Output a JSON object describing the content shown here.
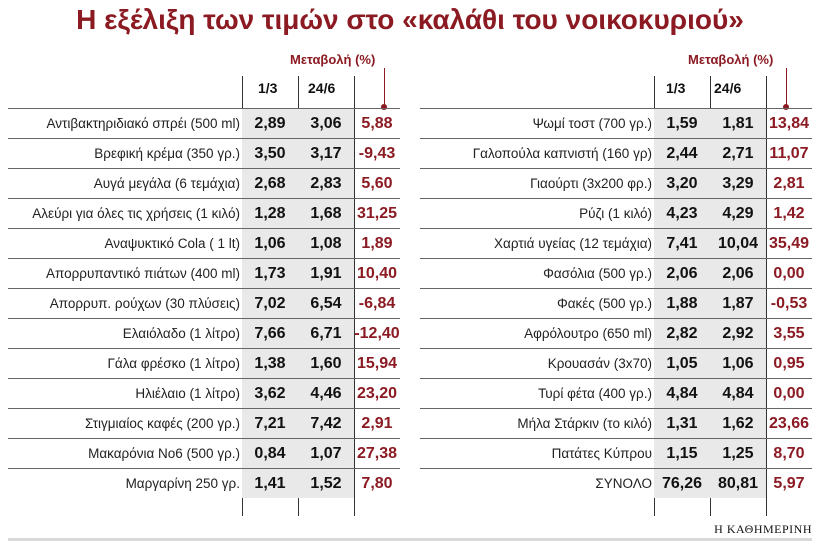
{
  "title": "Η εξέλιξη των τιμών στο «καλάθι του νοικοκυριού»",
  "source": "Η ΚΑΘΗΜΕΡΙΝΗ",
  "colors": {
    "accent": "#8b1a22",
    "shade": "#e9e9e9"
  },
  "headers": {
    "change": "Μεταβολή (%)",
    "date1": "1/3",
    "date2": "24/6"
  },
  "chart_data": {
    "type": "table",
    "title": "Η εξέλιξη των τιμών στο «καλάθι του νοικοκυριού»",
    "columns": [
      "1/3",
      "24/6",
      "Μεταβολή (%)"
    ],
    "left": [
      {
        "item": "Αντιβακτηριδιακό σπρέι (500 ml)",
        "v1": "2,89",
        "v2": "3,06",
        "change": "5,88"
      },
      {
        "item": "Βρεφική κρέμα (350 γρ.)",
        "v1": "3,50",
        "v2": "3,17",
        "change": "-9,43"
      },
      {
        "item": "Αυγά μεγάλα (6 τεμάχια)",
        "v1": "2,68",
        "v2": "2,83",
        "change": "5,60"
      },
      {
        "item": "Αλεύρι για όλες τις χρήσεις (1 κιλό)",
        "v1": "1,28",
        "v2": "1,68",
        "change": "31,25"
      },
      {
        "item": "Αναψυκτικό Cola ( 1 lt)",
        "v1": "1,06",
        "v2": "1,08",
        "change": "1,89"
      },
      {
        "item": "Απορρυπαντικό πιάτων (400 ml)",
        "v1": "1,73",
        "v2": "1,91",
        "change": "10,40"
      },
      {
        "item": "Απορρυπ. ρούχων (30 πλύσεις)",
        "v1": "7,02",
        "v2": "6,54",
        "change": "-6,84"
      },
      {
        "item": "Ελαιόλαδο (1 λίτρο)",
        "v1": "7,66",
        "v2": "6,71",
        "change": "-12,40"
      },
      {
        "item": "Γάλα φρέσκο (1 λίτρο)",
        "v1": "1,38",
        "v2": "1,60",
        "change": "15,94"
      },
      {
        "item": "Ηλιέλαιο (1 λίτρο)",
        "v1": "3,62",
        "v2": "4,46",
        "change": "23,20"
      },
      {
        "item": "Στιγμιαίος καφές (200 γρ.)",
        "v1": "7,21",
        "v2": "7,42",
        "change": "2,91"
      },
      {
        "item": "Μακαρόνια Νο6 (500 γρ.)",
        "v1": "0,84",
        "v2": "1,07",
        "change": "27,38"
      },
      {
        "item": "Μαργαρίνη 250 γρ.",
        "v1": "1,41",
        "v2": "1,52",
        "change": "7,80"
      }
    ],
    "right": [
      {
        "item": "Ψωμί τοστ (700 γρ.)",
        "v1": "1,59",
        "v2": "1,81",
        "change": "13,84"
      },
      {
        "item": "Γαλοπούλα καπνιστή (160 γρ)",
        "v1": "2,44",
        "v2": "2,71",
        "change": "11,07"
      },
      {
        "item": "Γιαούρτι (3x200 φρ.)",
        "v1": "3,20",
        "v2": "3,29",
        "change": "2,81"
      },
      {
        "item": "Ρύζι (1 κιλό)",
        "v1": "4,23",
        "v2": "4,29",
        "change": "1,42"
      },
      {
        "item": "Χαρτιά υγείας (12 τεμάχια)",
        "v1": "7,41",
        "v2": "10,04",
        "change": "35,49"
      },
      {
        "item": "Φασόλια (500 γρ.)",
        "v1": "2,06",
        "v2": "2,06",
        "change": "0,00"
      },
      {
        "item": "Φακές (500 γρ.)",
        "v1": "1,88",
        "v2": "1,87",
        "change": "-0,53"
      },
      {
        "item": "Αφρόλουτρο (650 ml)",
        "v1": "2,82",
        "v2": "2,92",
        "change": "3,55"
      },
      {
        "item": "Κρουασάν (3x70)",
        "v1": "1,05",
        "v2": "1,06",
        "change": "0,95"
      },
      {
        "item": "Τυρί φέτα (400 γρ.)",
        "v1": "4,84",
        "v2": "4,84",
        "change": "0,00"
      },
      {
        "item": "Μήλα Στάρκιν (το κιλό)",
        "v1": "1,31",
        "v2": "1,62",
        "change": "23,66"
      },
      {
        "item": "Πατάτες Κύπρου",
        "v1": "1,15",
        "v2": "1,25",
        "change": "8,70"
      },
      {
        "item": "ΣΥΝΟΛΟ",
        "v1": "76,26",
        "v2": "80,81",
        "change": "5,97"
      }
    ]
  }
}
